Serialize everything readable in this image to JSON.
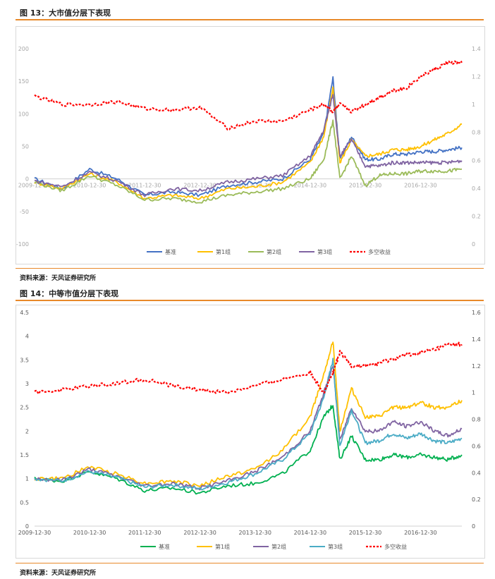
{
  "figures": [
    {
      "title": "图 13：大市值分层下表现",
      "source": "资料来源：天风证券研究所"
    },
    {
      "title": "图 14：中等市值分层下表现",
      "source": "资料来源：天风证券研究所"
    }
  ],
  "chart_data": [
    {
      "type": "line",
      "title": "",
      "xlabel": "",
      "ylabel": "",
      "x_ticks": [
        "2009-12-30",
        "2010-12-30",
        "2011-12-30",
        "2012-12-30",
        "2013-12-30",
        "2014-12-30",
        "2015-12-30",
        "2016-12-30"
      ],
      "x": [
        "2009-12-30",
        "2010-06-30",
        "2010-12-30",
        "2011-06-30",
        "2011-12-30",
        "2012-06-30",
        "2012-12-30",
        "2013-06-30",
        "2013-12-30",
        "2014-06-30",
        "2014-12-30",
        "2015-03-30",
        "2015-05-30",
        "2015-07-15",
        "2015-09-30",
        "2015-12-30",
        "2016-03-30",
        "2016-06-30",
        "2016-09-30",
        "2016-12-30",
        "2017-03-30",
        "2017-06-30",
        "2017-09-30"
      ],
      "ylim_left": [
        -100,
        200
      ],
      "yticks_left": [
        "200",
        "150",
        "100",
        "50",
        "0",
        "-50",
        "-100"
      ],
      "ylim_right": [
        0,
        1.4
      ],
      "yticks_right": [
        "1.4",
        "1.2",
        "1",
        "0.8",
        "0.6",
        "0.4",
        "0.2",
        "0"
      ],
      "grid": false,
      "legend_position": "bottom",
      "series": [
        {
          "name": "基准",
          "color": "#4472c4",
          "axis": "left",
          "dash": false,
          "values": [
            0,
            -15,
            15,
            0,
            -25,
            -20,
            -25,
            -10,
            -5,
            0,
            30,
            70,
            155,
            30,
            65,
            30,
            30,
            38,
            38,
            42,
            42,
            45,
            48
          ]
        },
        {
          "name": "第1组",
          "color": "#ffc000",
          "axis": "left",
          "dash": false,
          "values": [
            -5,
            -15,
            8,
            -5,
            -30,
            -25,
            -30,
            -15,
            -12,
            -5,
            25,
            65,
            140,
            25,
            60,
            35,
            38,
            45,
            45,
            50,
            60,
            70,
            84
          ]
        },
        {
          "name": "第2组",
          "color": "#9bbb59",
          "axis": "left",
          "dash": false,
          "values": [
            -5,
            -18,
            5,
            -10,
            -32,
            -30,
            -35,
            -25,
            -20,
            -15,
            0,
            30,
            90,
            0,
            35,
            -10,
            5,
            8,
            8,
            12,
            12,
            12,
            15
          ]
        },
        {
          "name": "第3组",
          "color": "#8064a2",
          "axis": "left",
          "dash": false,
          "values": [
            -3,
            -12,
            10,
            -3,
            -25,
            -15,
            -18,
            -5,
            0,
            5,
            35,
            75,
            130,
            35,
            60,
            20,
            20,
            25,
            25,
            25,
            25,
            25,
            28
          ]
        },
        {
          "name": "多空收益",
          "color": "#ff0000",
          "axis": "right",
          "dash": true,
          "values": [
            1.06,
            1.0,
            1.0,
            1.02,
            0.97,
            0.96,
            0.98,
            0.83,
            0.88,
            0.88,
            0.96,
            1.0,
            0.95,
            1.0,
            0.95,
            1.0,
            1.05,
            1.1,
            1.12,
            1.2,
            1.25,
            1.3,
            1.3
          ]
        }
      ]
    },
    {
      "type": "line",
      "title": "",
      "xlabel": "",
      "ylabel": "",
      "x_ticks": [
        "2009-12-30",
        "2010-12-30",
        "2011-12-30",
        "2012-12-30",
        "2013-12-30",
        "2014-12-30",
        "2015-12-30",
        "2016-12-30"
      ],
      "x": [
        "2009-12-30",
        "2010-06-30",
        "2010-12-30",
        "2011-06-30",
        "2011-12-30",
        "2012-06-30",
        "2012-12-30",
        "2013-06-30",
        "2013-12-30",
        "2014-06-30",
        "2014-12-30",
        "2015-03-30",
        "2015-05-30",
        "2015-07-15",
        "2015-09-30",
        "2015-12-30",
        "2016-03-30",
        "2016-06-30",
        "2016-09-30",
        "2016-12-30",
        "2017-03-30",
        "2017-06-30",
        "2017-09-30"
      ],
      "ylim_left": [
        0,
        4.5
      ],
      "yticks_left": [
        "4.5",
        "4",
        "3.5",
        "3",
        "2.5",
        "2",
        "1.5",
        "1",
        "0.5",
        "0"
      ],
      "ylim_right": [
        0,
        1.6
      ],
      "yticks_right": [
        "1.6",
        "1.4",
        "1.2",
        "1",
        "0.8",
        "0.6",
        "0.4",
        "0.2",
        "0"
      ],
      "grid": false,
      "legend_position": "bottom",
      "series": [
        {
          "name": "基准",
          "color": "#00b050",
          "axis": "left",
          "dash": false,
          "values": [
            1.0,
            0.95,
            1.15,
            1.0,
            0.75,
            0.8,
            0.7,
            0.85,
            0.9,
            1.1,
            1.6,
            2.3,
            2.55,
            1.4,
            1.9,
            1.4,
            1.4,
            1.5,
            1.45,
            1.5,
            1.45,
            1.4,
            1.5
          ]
        },
        {
          "name": "第1组",
          "color": "#ffc000",
          "axis": "left",
          "dash": false,
          "values": [
            1.0,
            1.0,
            1.25,
            1.1,
            0.9,
            0.95,
            0.85,
            1.05,
            1.2,
            1.6,
            2.3,
            3.2,
            3.9,
            2.0,
            2.9,
            2.3,
            2.3,
            2.5,
            2.5,
            2.6,
            2.5,
            2.5,
            2.65
          ]
        },
        {
          "name": "第2组",
          "color": "#8064a2",
          "axis": "left",
          "dash": false,
          "values": [
            1.0,
            0.97,
            1.2,
            1.05,
            0.85,
            0.9,
            0.8,
            0.95,
            1.15,
            1.45,
            2.0,
            2.8,
            3.4,
            1.8,
            2.5,
            2.0,
            2.0,
            2.2,
            2.1,
            2.2,
            2.0,
            1.9,
            2.05
          ]
        },
        {
          "name": "第3组",
          "color": "#4bacc6",
          "axis": "left",
          "dash": false,
          "values": [
            1.0,
            0.95,
            1.15,
            1.02,
            0.82,
            0.87,
            0.78,
            0.92,
            1.1,
            1.4,
            1.95,
            2.7,
            3.5,
            1.7,
            2.45,
            1.75,
            1.8,
            1.95,
            1.85,
            1.95,
            1.8,
            1.75,
            1.85
          ]
        },
        {
          "name": "多空收益",
          "color": "#ff0000",
          "axis": "right",
          "dash": true,
          "values": [
            1.0,
            1.02,
            1.05,
            1.07,
            1.1,
            1.05,
            1.02,
            1.0,
            1.05,
            1.1,
            1.15,
            1.0,
            1.15,
            1.3,
            1.2,
            1.2,
            1.22,
            1.25,
            1.28,
            1.3,
            1.32,
            1.36,
            1.36
          ]
        }
      ]
    }
  ]
}
